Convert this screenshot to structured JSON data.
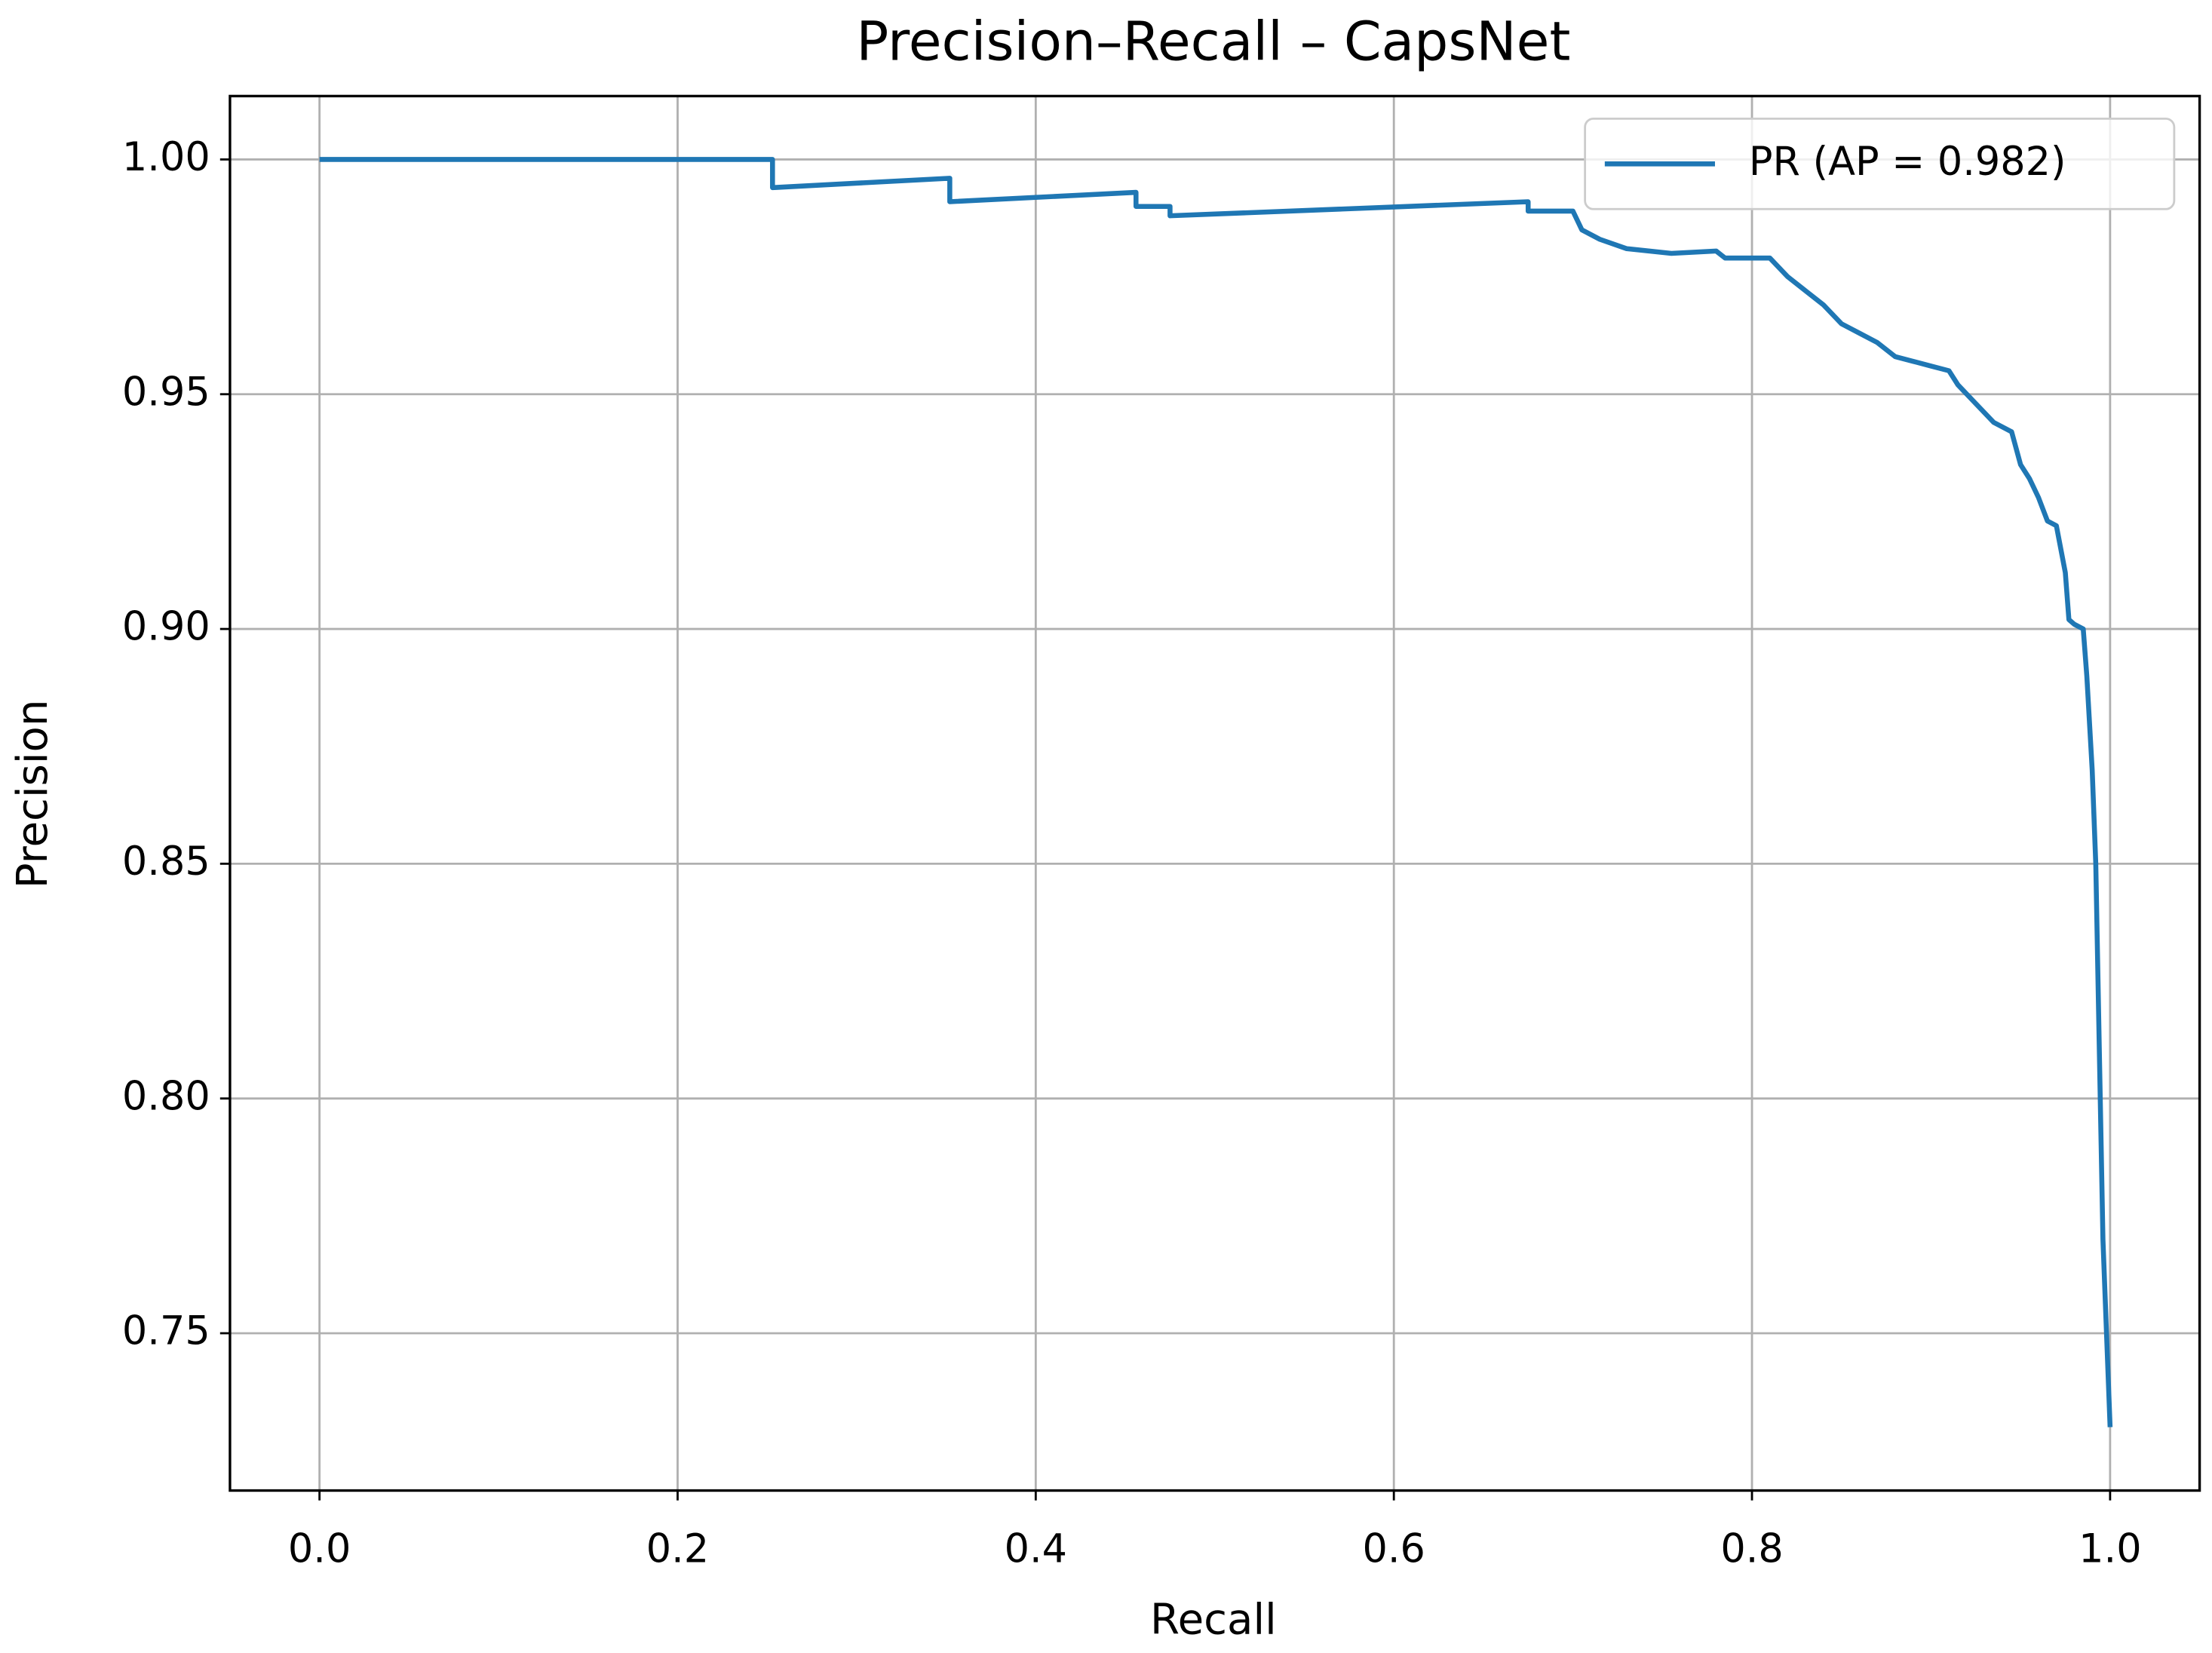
{
  "chart_data": {
    "type": "line",
    "title": "Precision–Recall – CapsNet",
    "x_label": "Recall",
    "y_label": "Precision",
    "xlim": [
      -0.05,
      1.05
    ],
    "ylim": [
      0.7165,
      1.0135
    ],
    "xticks": [
      {
        "value": 0,
        "label": "0.0"
      },
      0.2,
      0.4,
      0.6,
      0.8,
      {
        "value": 1,
        "label": "1.0"
      }
    ],
    "yticks": [
      0.75,
      {
        "value": 0.8,
        "label": "0.80"
      },
      0.85,
      {
        "value": 0.9,
        "label": "0.90"
      },
      0.95,
      {
        "value": 1,
        "label": "1.00"
      }
    ],
    "grid": true,
    "legend": "upper right",
    "series": [
      {
        "name": "PR (AP = 0.982)",
        "color": "#1f77b4",
        "x": [
          0,
          0.253,
          0.253,
          0.352,
          0.352,
          0.456,
          0.456,
          0.475,
          0.475,
          0.675,
          0.675,
          0.7,
          0.705,
          0.715,
          0.73,
          0.755,
          0.78,
          0.785,
          0.81,
          0.82,
          0.83,
          0.84,
          0.85,
          0.86,
          0.87,
          0.88,
          0.89,
          0.9,
          0.91,
          0.915,
          0.925,
          0.935,
          0.945,
          0.95,
          0.955,
          0.96,
          0.965,
          0.97,
          0.975,
          0.977,
          0.98,
          0.985,
          0.987,
          0.99,
          0.992,
          0.993,
          0.994,
          0.995,
          0.996,
          0.998,
          0.999,
          1.0
        ],
        "y": [
          1.0,
          1.0,
          0.994,
          0.996,
          0.991,
          0.993,
          0.99,
          0.99,
          0.988,
          0.991,
          0.989,
          0.989,
          0.985,
          0.983,
          0.981,
          0.98,
          0.9805,
          0.979,
          0.979,
          0.975,
          0.972,
          0.969,
          0.965,
          0.963,
          0.961,
          0.958,
          0.957,
          0.956,
          0.955,
          0.952,
          0.948,
          0.944,
          0.942,
          0.935,
          0.932,
          0.928,
          0.923,
          0.922,
          0.912,
          0.902,
          0.901,
          0.9,
          0.89,
          0.87,
          0.85,
          0.83,
          0.81,
          0.79,
          0.77,
          0.75,
          0.74,
          0.73
        ]
      }
    ]
  }
}
